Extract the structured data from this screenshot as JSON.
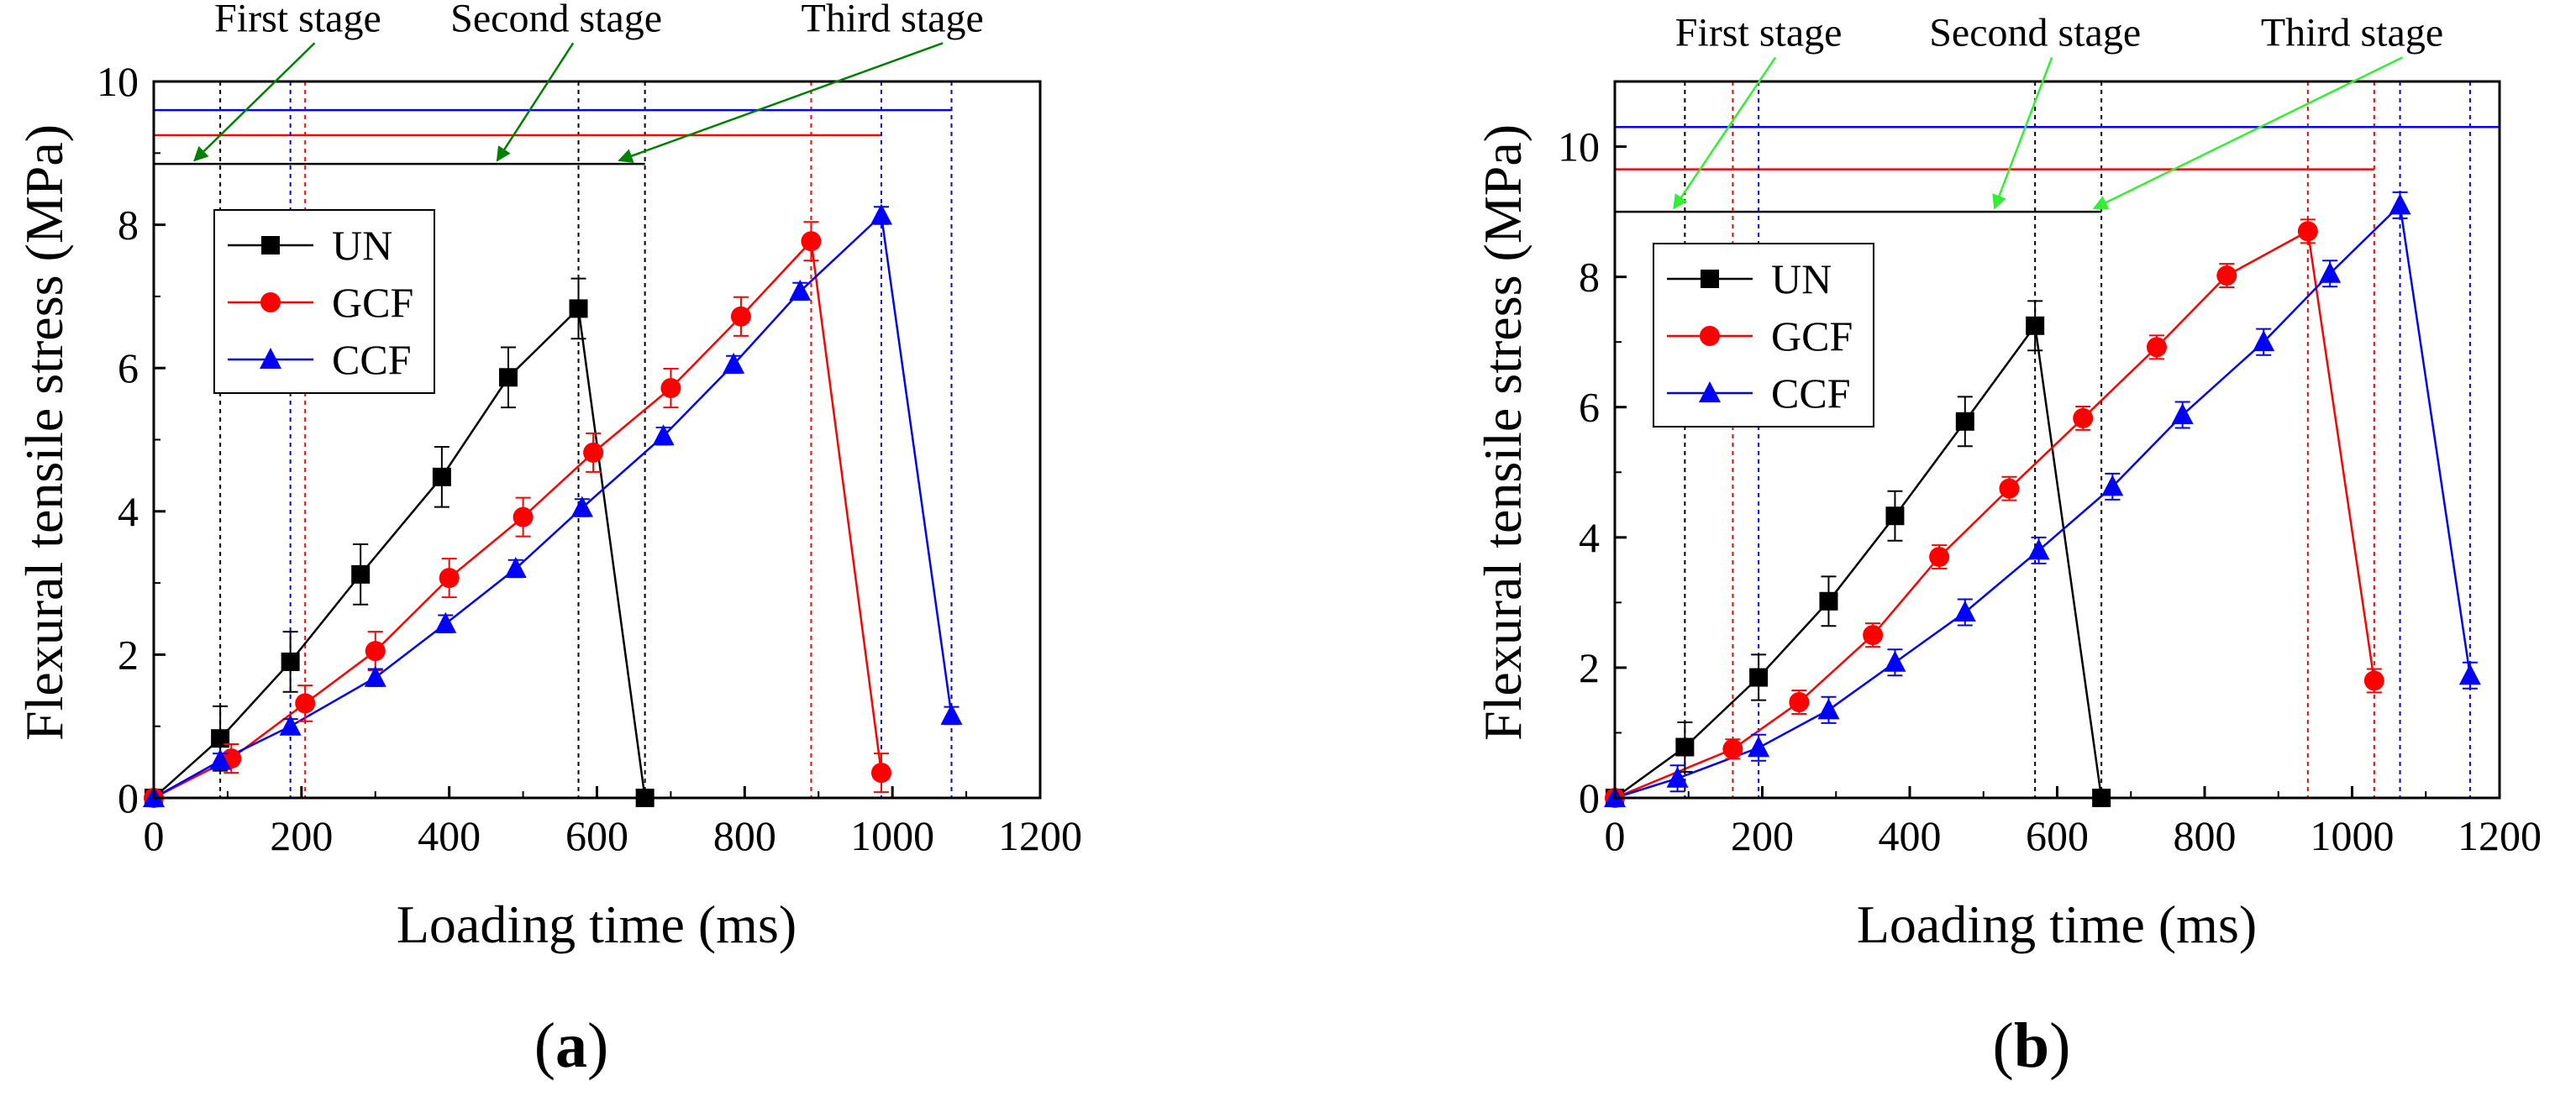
{
  "chart_data": [
    {
      "type": "line",
      "panel_label": {
        "open": "(",
        "letter": "a",
        "close": ")"
      },
      "xlabel": "Loading time (ms)",
      "ylabel": "Flexural tensile stress (MPa)",
      "xlim": [
        0,
        1200
      ],
      "ylim": [
        0,
        10
      ],
      "xticks": [
        0,
        200,
        400,
        600,
        800,
        1000,
        1200
      ],
      "yticks": [
        0,
        2,
        4,
        6,
        8,
        10
      ],
      "legend_position": "upper-left",
      "series": [
        {
          "name": "UN",
          "color": "#000000",
          "marker": "square",
          "x": [
            0,
            90,
            185,
            280,
            390,
            480,
            575,
            665
          ],
          "y": [
            0,
            0.83,
            1.9,
            3.12,
            4.48,
            5.87,
            6.83,
            0
          ],
          "err": [
            0,
            0.45,
            0.42,
            0.42,
            0.42,
            0.42,
            0.42,
            0
          ]
        },
        {
          "name": "GCF",
          "color": "#ff0000",
          "marker": "circle",
          "x": [
            0,
            105,
            205,
            300,
            400,
            500,
            595,
            700,
            795,
            890,
            985
          ],
          "y": [
            0,
            0.55,
            1.32,
            2.05,
            3.07,
            3.92,
            4.82,
            5.72,
            6.72,
            7.77,
            0.35
          ],
          "err": [
            0,
            0.2,
            0.25,
            0.27,
            0.27,
            0.27,
            0.27,
            0.27,
            0.27,
            0.27,
            0.27
          ]
        },
        {
          "name": "CCF",
          "color": "#0000ff",
          "marker": "triangle",
          "x": [
            0,
            90,
            185,
            300,
            395,
            490,
            580,
            690,
            785,
            875,
            985,
            1080
          ],
          "y": [
            0,
            0.52,
            1.0,
            1.68,
            2.43,
            3.2,
            4.05,
            5.05,
            6.05,
            7.07,
            8.13,
            1.15
          ],
          "err": [
            0,
            0.1,
            0.1,
            0.12,
            0.12,
            0.12,
            0.12,
            0.12,
            0.12,
            0.12,
            0.12,
            0.12
          ]
        }
      ],
      "stage_lines": [
        {
          "series": "UN",
          "level": 8.85,
          "end": 665,
          "verticals": [
            90,
            575,
            665
          ]
        },
        {
          "series": "GCF",
          "level": 9.25,
          "end": 985,
          "verticals": [
            205,
            890
          ]
        },
        {
          "series": "CCF",
          "level": 9.6,
          "end": 1080,
          "verticals": [
            185,
            985,
            1080
          ]
        }
      ],
      "annotations": [
        {
          "text": "First stage",
          "label_x": 195,
          "label_y": 10.7,
          "tip_x": 55,
          "tip_y": 8.85
        },
        {
          "text": "Second stage",
          "label_x": 545,
          "label_y": 10.7,
          "tip_x": 465,
          "tip_y": 8.85
        },
        {
          "text": "Third stage",
          "label_x": 1000,
          "label_y": 10.7,
          "tip_x": 630,
          "tip_y": 8.85
        }
      ],
      "annotation_arrow_color": "#008000"
    },
    {
      "type": "line",
      "panel_label": {
        "open": "(",
        "letter": "b",
        "close": ")"
      },
      "xlabel": "Loading time (ms)",
      "ylabel": "Flexural tensile stress (MPa)",
      "xlim": [
        0,
        1200
      ],
      "ylim": [
        0,
        11
      ],
      "xticks": [
        0,
        200,
        400,
        600,
        800,
        1000,
        1200
      ],
      "yticks": [
        0,
        2,
        4,
        6,
        8,
        10
      ],
      "legend_position": "upper-left",
      "series": [
        {
          "name": "UN",
          "color": "#000000",
          "marker": "square",
          "x": [
            0,
            95,
            195,
            290,
            380,
            475,
            570,
            660
          ],
          "y": [
            0,
            0.78,
            1.85,
            3.02,
            4.33,
            5.78,
            7.25,
            0
          ],
          "err": [
            0,
            0.38,
            0.35,
            0.38,
            0.38,
            0.38,
            0.38,
            0
          ]
        },
        {
          "name": "GCF",
          "color": "#ff0000",
          "marker": "circle",
          "x": [
            0,
            160,
            250,
            350,
            440,
            535,
            635,
            735,
            830,
            940,
            1030
          ],
          "y": [
            0,
            0.75,
            1.47,
            2.5,
            3.7,
            4.75,
            5.83,
            6.92,
            8.02,
            8.7,
            1.8
          ],
          "err": [
            0,
            0.15,
            0.18,
            0.18,
            0.18,
            0.18,
            0.18,
            0.18,
            0.18,
            0.18,
            0.18
          ]
        },
        {
          "name": "CCF",
          "color": "#0000ff",
          "marker": "triangle",
          "x": [
            0,
            85,
            195,
            290,
            380,
            475,
            575,
            675,
            770,
            880,
            970,
            1065,
            1160
          ],
          "y": [
            0,
            0.3,
            0.77,
            1.35,
            2.08,
            2.85,
            3.8,
            4.78,
            5.88,
            7.0,
            8.05,
            9.1,
            1.88
          ],
          "err": [
            0,
            0.2,
            0.2,
            0.2,
            0.2,
            0.2,
            0.2,
            0.2,
            0.2,
            0.2,
            0.2,
            0.2,
            0.2
          ]
        }
      ],
      "stage_lines": [
        {
          "series": "UN",
          "level": 9.0,
          "end": 660,
          "verticals": [
            95,
            570,
            660
          ]
        },
        {
          "series": "GCF",
          "level": 9.65,
          "end": 1030,
          "verticals": [
            160,
            940,
            1030
          ]
        },
        {
          "series": "CCF",
          "level": 10.3,
          "end": 1200,
          "verticals": [
            195,
            1065,
            1160
          ]
        }
      ],
      "annotations": [
        {
          "text": "First stage",
          "label_x": 195,
          "label_y": 11.55,
          "tip_x": 80,
          "tip_y": 9.0
        },
        {
          "text": "Second stage",
          "label_x": 570,
          "label_y": 11.55,
          "tip_x": 515,
          "tip_y": 9.0
        },
        {
          "text": "Third stage",
          "label_x": 1000,
          "label_y": 11.55,
          "tip_x": 650,
          "tip_y": 9.0
        }
      ],
      "annotation_arrow_color": "#33ee33"
    }
  ]
}
